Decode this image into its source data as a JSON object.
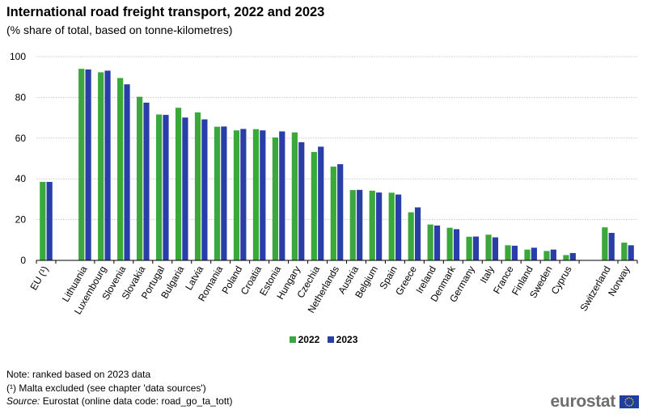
{
  "title": "International road freight transport, 2022 and 2023",
  "subtitle": "(% share of total, based on tonne-kilometres)",
  "notes": {
    "line1": "Note: ranked based on 2023 data",
    "line2": "(¹) Malta excluded (see chapter 'data sources')",
    "source_label": "Source:",
    "source_text": " Eurostat (online data code: road_go_ta_tott)"
  },
  "brand": {
    "name": "eurostat",
    "flag_icon": "eu-flag-icon"
  },
  "colors": {
    "series_2022": "#3aa83a",
    "series_2023": "#2a3ea8",
    "grid": "#c8c8c8",
    "axis": "#000000"
  },
  "chart_data": {
    "type": "bar",
    "title": "International road freight transport, 2022 and 2023",
    "subtitle": "(% share of total, based on tonne-kilometres)",
    "xlabel": "",
    "ylabel": "",
    "ylim": [
      0,
      100
    ],
    "yticks": [
      0,
      20,
      40,
      60,
      80,
      100
    ],
    "grid": true,
    "legend_position": "bottom-center",
    "group_breaks_after": [
      "EU (¹)",
      "Cyprus"
    ],
    "categories": [
      "EU (¹)",
      "Lithuania",
      "Luxembourg",
      "Slovenia",
      "Slovakia",
      "Portugal",
      "Bulgaria",
      "Latvia",
      "Romania",
      "Poland",
      "Croatia",
      "Estonia",
      "Hungary",
      "Czechia",
      "Netherlands",
      "Austria",
      "Belgium",
      "Spain",
      "Greece",
      "Ireland",
      "Denmark",
      "Germany",
      "Italy",
      "France",
      "Finland",
      "Sweden",
      "Cyprus",
      "Switzerland",
      "Norway"
    ],
    "series": [
      {
        "name": "2022",
        "values": [
          38.5,
          94.0,
          92.3,
          89.5,
          80.3,
          71.6,
          74.9,
          72.6,
          65.6,
          63.8,
          64.4,
          60.3,
          62.8,
          53.2,
          46.0,
          34.5,
          34.2,
          33.2,
          23.6,
          17.6,
          16.0,
          11.6,
          12.6,
          7.4,
          5.3,
          4.6,
          2.6,
          16.2,
          8.7
        ]
      },
      {
        "name": "2023",
        "values": [
          38.5,
          93.7,
          93.1,
          86.4,
          77.4,
          71.4,
          70.1,
          69.2,
          65.7,
          64.5,
          63.8,
          63.3,
          58.0,
          55.8,
          47.2,
          34.6,
          33.3,
          32.3,
          26.0,
          17.1,
          15.3,
          11.7,
          11.3,
          7.2,
          6.2,
          5.3,
          3.6,
          13.5,
          7.4
        ]
      }
    ]
  }
}
